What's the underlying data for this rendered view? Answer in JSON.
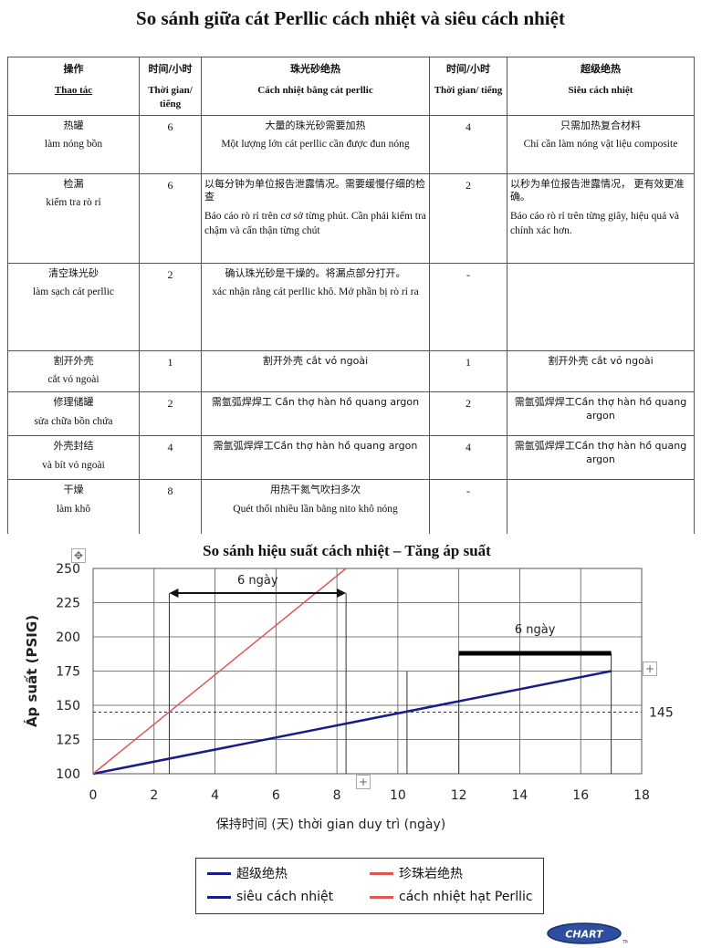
{
  "title": "So sánh giữa cát Perllic cách nhiệt và siêu cách nhiệt",
  "table": {
    "headers": [
      {
        "zh": "操作",
        "vi": "Thao tác"
      },
      {
        "zh": "时间/小时",
        "vi": "Thời gian/ tiếng"
      },
      {
        "zh": "珠光砂绝热",
        "vi": "Cách nhiệt bằng cát perllic"
      },
      {
        "zh": "时间/小时",
        "vi": "Thời gian/ tiếng"
      },
      {
        "zh": "超级绝热",
        "vi": "Siêu cách nhiệt"
      }
    ],
    "rows": [
      {
        "op_zh": "热罐",
        "op_vi": "làm nóng bồn",
        "t1": "6",
        "perl_zh": "大量的珠光砂需要加热",
        "perl_vi": "Một lượng lớn cát perllic cần được đun nóng",
        "t2": "4",
        "super_zh": "只需加热复合材料",
        "super_vi": "Chỉ cần làm nóng vật liệu composite"
      },
      {
        "op_zh": "检漏",
        "op_vi": "kiểm tra rò rỉ",
        "t1": "6",
        "perl_zh": "以每分钟为单位报告泄露情况。需要缓慢仔细的检查",
        "perl_vi": "Báo cáo rò rỉ trên cơ sở từng phút. Cần phải kiểm tra chậm và cẩn thận từng chút",
        "t2": "2",
        "super_zh": "以秒为单位报告泄露情况， 更有效更准确。",
        "super_vi": "Báo cáo rò rỉ trên từng giây, hiệu quả và chính xác hơn."
      },
      {
        "op_zh": "清空珠光砂",
        "op_vi": "làm sạch cát perllic",
        "t1": "2",
        "perl_zh": "确认珠光砂是干燥的。将漏点部分打开。",
        "perl_vi": "xác nhận rằng cát perllic khô. Mở phần bị rò rỉ ra",
        "t2": "-",
        "super_zh": "",
        "super_vi": ""
      },
      {
        "op_zh": "割开外壳",
        "op_vi": "cắt vỏ ngoài",
        "t1": "1",
        "perl_zh": "割开外壳 cắt vỏ ngoài",
        "perl_vi": "",
        "t2": "1",
        "super_zh": "割开外壳 cắt vỏ ngoài",
        "super_vi": ""
      },
      {
        "op_zh": "修理储罐",
        "op_vi": "sửa chữa bồn chứa",
        "t1": "2",
        "perl_zh": "需氩弧焊焊工 Cần thợ hàn hồ quang argon",
        "perl_vi": "",
        "t2": "2",
        "super_zh": "需氩弧焊焊工Cần thợ hàn hồ quang argon",
        "super_vi": ""
      },
      {
        "op_zh": "外壳封结",
        "op_vi": "và bít vỏ ngoài",
        "t1": "4",
        "perl_zh": "需氩弧焊焊工Cần thợ hàn hồ quang argon",
        "perl_vi": "",
        "t2": "4",
        "super_zh": "需氩弧焊焊工Cần thợ hàn hồ quang argon",
        "super_vi": ""
      },
      {
        "op_zh": "干燥",
        "op_vi": "làm khô",
        "t1": "8",
        "perl_zh": "用热干氮气吹扫多次",
        "perl_vi": "Quét thổi nhiều lần bằng nito khô nóng",
        "t2": "-",
        "super_zh": "",
        "super_vi": ""
      }
    ]
  },
  "chart_data": {
    "type": "line",
    "title": "So sánh hiệu suất cách nhiệt – Tăng áp suất",
    "xlabel": "保持时间 (天) thời gian duy trì (ngày)",
    "ylabel": "Áp suất (PSIG)",
    "xlim": [
      0,
      18
    ],
    "ylim": [
      100,
      250
    ],
    "xticks": [
      0,
      2,
      4,
      6,
      8,
      10,
      12,
      14,
      16,
      18
    ],
    "yticks": [
      100,
      125,
      150,
      175,
      200,
      225,
      250
    ],
    "grid": true,
    "series": [
      {
        "name": "超级绝热 / siêu cách nhiệt",
        "color": "#1a1a8c",
        "x": [
          0,
          17
        ],
        "y": [
          100,
          175
        ]
      },
      {
        "name": "珍珠岩绝热 / cách nhiệt hạt Perllic",
        "color": "#e05555",
        "x": [
          0,
          8.3
        ],
        "y": [
          100,
          250
        ]
      }
    ],
    "reference_line": {
      "y": 145,
      "label": "145"
    },
    "annotations": [
      {
        "text": "6 ngày",
        "x_start": 2.5,
        "x_end": 8.3,
        "y": 232
      },
      {
        "text": "6 ngày",
        "x_start": 12,
        "x_end": 17,
        "y": 188
      }
    ],
    "legend": {
      "position": "bottom",
      "entries": [
        {
          "label": "超级绝热",
          "color": "#1a1a8c"
        },
        {
          "label": "珍珠岩绝热",
          "color": "#e05555"
        },
        {
          "label": "siêu cách nhiệt",
          "color": "#1a1a8c"
        },
        {
          "label": "cách nhiệt hạt Perllic",
          "color": "#e05555"
        }
      ]
    }
  },
  "logo": {
    "text": "CHART",
    "tm": "TM"
  }
}
